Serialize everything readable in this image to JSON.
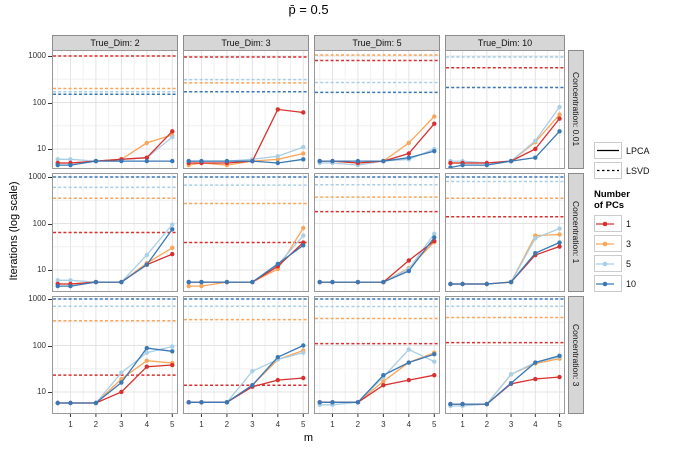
{
  "title": "p̄ = 0.5",
  "y_axis": {
    "label": "Iterations (log scale)",
    "ticks": [
      "10",
      "100",
      "1000"
    ]
  },
  "x_axis": {
    "label": "m",
    "ticks": [
      "1",
      "2",
      "3",
      "4",
      "5"
    ]
  },
  "facets": {
    "col_labels": [
      "True_Dim: 2",
      "True_Dim: 3",
      "True_Dim: 5",
      "True_Dim: 10"
    ],
    "row_labels": [
      "Concentration: 0.01",
      "Concentration: 1",
      "Concentration: 3"
    ]
  },
  "legend": {
    "linetype_entries": [
      {
        "label": "LPCA",
        "style": "solid"
      },
      {
        "label": "LSVD",
        "style": "dashed"
      }
    ],
    "color_title_line1": "Number",
    "color_title_line2": "of PCs",
    "color_entries": [
      {
        "label": "1",
        "color": "#d7302f"
      },
      {
        "label": "3",
        "color": "#f9a65c"
      },
      {
        "label": "5",
        "color": "#a9cfe5"
      },
      {
        "label": "10",
        "color": "#3978b5"
      }
    ]
  },
  "chart_data": {
    "type": "line",
    "x_values": [
      0.5,
      1,
      2,
      3,
      4,
      5
    ],
    "x_ticks": [
      1,
      2,
      3,
      4,
      5
    ],
    "y_scale": "log10",
    "y_major_ticks": [
      10,
      100,
      1000
    ],
    "colors": {
      "1": "#d7302f",
      "3": "#f9a65c",
      "5": "#a9cfe5",
      "10": "#3978b5"
    },
    "line_types": {
      "LPCA": "solid",
      "LSVD": "dashed-horizontal"
    },
    "panels": [
      {
        "row": 0,
        "col": 0,
        "facet_col": "True_Dim: 2",
        "facet_row": "Concentration: 0.01",
        "lpca": {
          "1": [
            5,
            5,
            5.5,
            6,
            6.5,
            24
          ],
          "3": [
            5,
            5,
            5.5,
            6,
            13.5,
            20
          ],
          "5": [
            6,
            6,
            5.5,
            6,
            6.5,
            18
          ],
          "10": [
            4.5,
            4.5,
            5.5,
            5.5,
            5.5,
            5.5
          ]
        },
        "lsvd": {
          "1": 1000,
          "3": 200,
          "5": 170,
          "10": 150
        }
      },
      {
        "row": 0,
        "col": 1,
        "facet_col": "True_Dim: 3",
        "facet_row": "Concentration: 0.01",
        "lpca": {
          "1": [
            5,
            5,
            5,
            5.5,
            71,
            61
          ],
          "3": [
            4.5,
            5,
            4.5,
            5.5,
            6,
            8
          ],
          "5": [
            5.5,
            5.5,
            5.5,
            6,
            7,
            11
          ],
          "10": [
            5.5,
            5.5,
            5.5,
            5.5,
            5,
            6
          ]
        },
        "lsvd": {
          "1": 950,
          "3": 265,
          "5": 310,
          "10": 170
        }
      },
      {
        "row": 0,
        "col": 2,
        "facet_col": "True_Dim: 5",
        "facet_row": "Concentration: 0.01",
        "lpca": {
          "1": [
            5.5,
            5.5,
            5,
            5.5,
            8,
            35
          ],
          "3": [
            5.5,
            5.5,
            5,
            5.5,
            13.5,
            50
          ],
          "5": [
            5,
            5,
            4.5,
            5.5,
            6,
            10
          ],
          "10": [
            5.5,
            5.5,
            5.5,
            5.5,
            6.5,
            9
          ]
        },
        "lsvd": {
          "1": 800,
          "3": 1050,
          "5": 270,
          "10": 165
        }
      },
      {
        "row": 0,
        "col": 3,
        "facet_col": "True_Dim: 10",
        "facet_row": "Concentration: 0.01",
        "lpca": {
          "1": [
            5,
            5,
            5,
            5.5,
            10,
            45
          ],
          "3": [
            5,
            5,
            5,
            5.5,
            14,
            55
          ],
          "5": [
            5.5,
            5.5,
            5,
            5.5,
            15,
            80
          ],
          "10": [
            4,
            4.5,
            4.5,
            5.5,
            6.5,
            24
          ]
        },
        "lsvd": {
          "1": 560,
          "3": null,
          "5": 950,
          "10": 210
        }
      },
      {
        "row": 1,
        "col": 0,
        "facet_col": "True_Dim: 2",
        "facet_row": "Concentration: 1",
        "lpca": {
          "1": [
            5,
            5,
            5.5,
            5.5,
            13,
            22
          ],
          "3": [
            5,
            5,
            5.5,
            5.5,
            14,
            30
          ],
          "5": [
            6,
            6,
            5.5,
            5.5,
            21,
            95
          ],
          "10": [
            4.5,
            4.5,
            5.5,
            5.5,
            13,
            75
          ]
        },
        "lsvd": {
          "1": 64,
          "3": 350,
          "5": 600,
          "10": 1000
        }
      },
      {
        "row": 1,
        "col": 1,
        "facet_col": "True_Dim: 3",
        "facet_row": "Concentration: 1",
        "lpca": {
          "1": [
            5.5,
            5.5,
            5.5,
            5.5,
            12,
            39
          ],
          "3": [
            4.5,
            4.5,
            5.5,
            5.5,
            10.5,
            80
          ],
          "5": [
            5.5,
            5.5,
            5.5,
            5.5,
            13,
            55
          ],
          "10": [
            5.5,
            5.5,
            5.5,
            5.5,
            13.5,
            34
          ]
        },
        "lsvd": {
          "1": 39,
          "3": 270,
          "5": 670,
          "10": 1000
        }
      },
      {
        "row": 1,
        "col": 2,
        "facet_col": "True_Dim: 5",
        "facet_row": "Concentration: 1",
        "lpca": {
          "1": [
            5.5,
            5.5,
            5.5,
            5.5,
            16,
            42
          ],
          "3": [
            5.5,
            5.5,
            5.5,
            5.5,
            11,
            40
          ],
          "5": [
            5.5,
            5.5,
            5.5,
            5.5,
            10.5,
            60
          ],
          "10": [
            5.5,
            5.5,
            5.5,
            5.5,
            9.5,
            50
          ]
        },
        "lsvd": {
          "1": 180,
          "3": 370,
          "5": 680,
          "10": 1000
        }
      },
      {
        "row": 1,
        "col": 3,
        "facet_col": "True_Dim: 10",
        "facet_row": "Concentration: 1",
        "lpca": {
          "1": [
            5,
            5,
            5,
            5.5,
            21,
            32
          ],
          "3": [
            5,
            5,
            5,
            5.5,
            55,
            58
          ],
          "5": [
            5,
            5,
            5,
            5.5,
            48,
            78
          ],
          "10": [
            5,
            5,
            5,
            5.5,
            23,
            39
          ]
        },
        "lsvd": {
          "1": 140,
          "3": 350,
          "5": 800,
          "10": 1000
        }
      },
      {
        "row": 2,
        "col": 0,
        "facet_col": "True_Dim: 2",
        "facet_row": "Concentration: 3",
        "lpca": {
          "1": [
            5.8,
            5.8,
            5.8,
            10,
            35,
            38
          ],
          "3": [
            5.8,
            5.8,
            5.8,
            19,
            47,
            42
          ],
          "5": [
            5.8,
            5.8,
            5.8,
            26,
            70,
            95
          ],
          "10": [
            5.8,
            5.8,
            5.8,
            16,
            88,
            75
          ]
        },
        "lsvd": {
          "1": 23,
          "3": 340,
          "5": 700,
          "10": 1000
        }
      },
      {
        "row": 2,
        "col": 1,
        "facet_col": "True_Dim: 3",
        "facet_row": "Concentration: 3",
        "lpca": {
          "1": [
            6,
            6,
            6,
            13,
            18,
            20
          ],
          "3": [
            6,
            6,
            6,
            14,
            50,
            78
          ],
          "5": [
            6,
            6,
            6,
            28,
            50,
            70
          ],
          "10": [
            6,
            6,
            6,
            14,
            56,
            100
          ]
        },
        "lsvd": {
          "1": 14,
          "3": 360,
          "5": 700,
          "10": 1000
        }
      },
      {
        "row": 2,
        "col": 2,
        "facet_col": "True_Dim: 5",
        "facet_row": "Concentration: 3",
        "lpca": {
          "1": [
            6,
            6,
            6,
            14,
            18,
            23
          ],
          "3": [
            6,
            6,
            6,
            17,
            43,
            70
          ],
          "5": [
            5.3,
            5.3,
            6,
            21,
            82,
            45
          ],
          "10": [
            6,
            6,
            6,
            23,
            43,
            65
          ]
        },
        "lsvd": {
          "1": 110,
          "3": 380,
          "5": 690,
          "10": 1000
        }
      },
      {
        "row": 2,
        "col": 3,
        "facet_col": "True_Dim: 10",
        "facet_row": "Concentration: 3",
        "lpca": {
          "1": [
            5.5,
            5.5,
            5.5,
            15,
            19,
            21
          ],
          "3": [
            5.5,
            5.5,
            5.5,
            24,
            41,
            52
          ],
          "5": [
            5,
            5,
            5.5,
            24,
            43,
            57
          ],
          "10": [
            5.5,
            5.5,
            5.5,
            15.5,
            43,
            60
          ]
        },
        "lsvd": {
          "1": 115,
          "3": 400,
          "5": 700,
          "10": 1000
        }
      }
    ]
  }
}
